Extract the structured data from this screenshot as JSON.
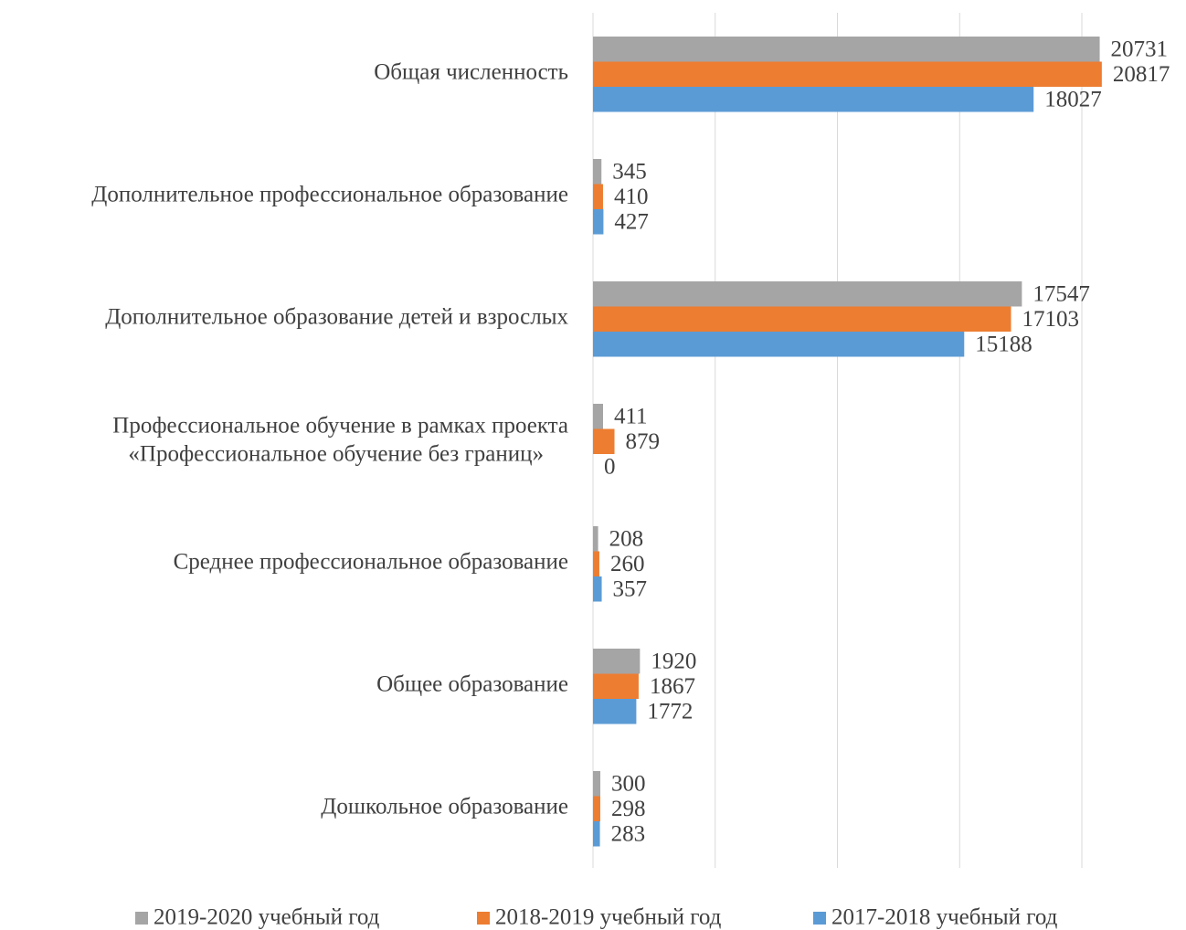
{
  "chart_data": {
    "type": "barh",
    "categories": [
      "Общая численность",
      "Дополнительное профессиональное образование",
      "Дополнительное образование детей и взрослых",
      "Профессиональное обучение в рамках проекта\n«Профессиональное обучение без границ»",
      "Среднее профессиональное образование",
      "Общее образование",
      "Дошкольное образование"
    ],
    "series": [
      {
        "name": "2019-2020 учебный год",
        "color": "#a5a5a5",
        "values": [
          20731,
          345,
          17547,
          411,
          208,
          1920,
          300
        ]
      },
      {
        "name": "2018-2019 учебный год",
        "color": "#ed7d31",
        "values": [
          20817,
          410,
          17103,
          879,
          260,
          1867,
          298
        ]
      },
      {
        "name": "2017-2018 учебный год",
        "color": "#5b9bd5",
        "values": [
          18027,
          427,
          15188,
          0,
          357,
          1772,
          283
        ]
      }
    ],
    "xlim": [
      0,
      24000
    ],
    "xticks": [
      0,
      5000,
      10000,
      15000,
      20000
    ],
    "grid": true,
    "legend": "bottom"
  }
}
